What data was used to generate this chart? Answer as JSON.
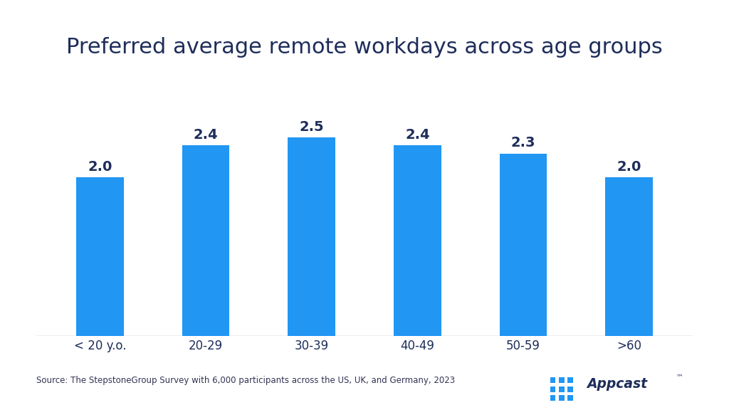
{
  "title": "Preferred average remote workdays across age groups",
  "categories": [
    "< 20 y.o.",
    "20-29",
    "30-39",
    "40-49",
    "50-59",
    ">60"
  ],
  "values": [
    2.0,
    2.4,
    2.5,
    2.4,
    2.3,
    2.0
  ],
  "bar_color": "#2196F3",
  "title_color": "#1e2d5a",
  "label_color": "#1e2d5a",
  "tick_color": "#1e2d5a",
  "background_color": "#ffffff",
  "source_text": "Source: The StepstoneGroup Survey with 6,000 participants across the US, UK, and Germany, 2023",
  "source_color": "#333355",
  "ylim": [
    0,
    3.2
  ],
  "bar_width": 0.45,
  "bar_label_fontsize": 14,
  "title_fontsize": 22,
  "tick_fontsize": 12,
  "source_fontsize": 8.5,
  "appcast_blue": "#2196F3",
  "appcast_dark": "#1e2d5a"
}
